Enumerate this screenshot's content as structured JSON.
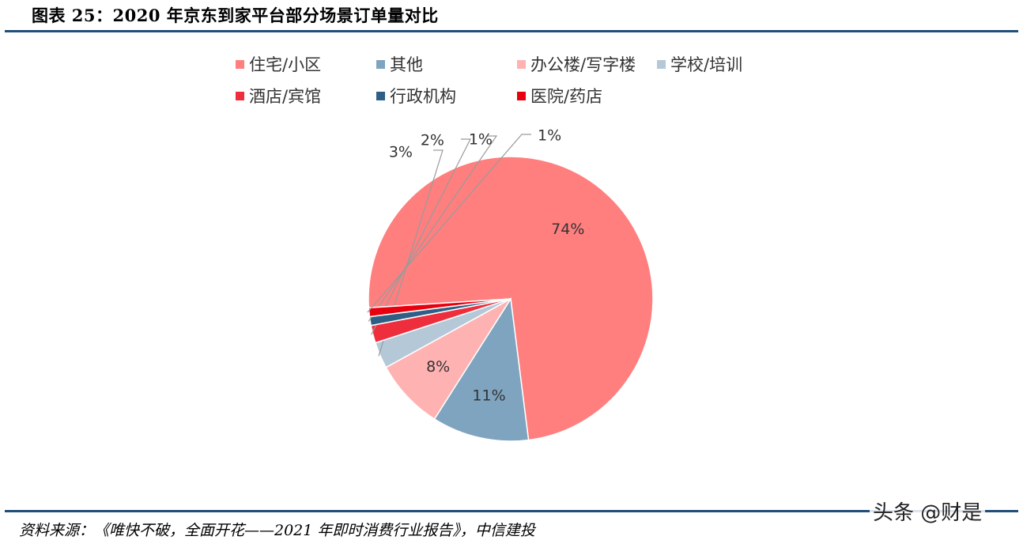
{
  "figure": {
    "title": "图表 25：2020 年京东到家平台部分场景订单量对比",
    "source": "资料来源：《唯快不破，全面开花——2021 年即时消费行业报告》，中信建投",
    "watermark": "头条 @财是"
  },
  "chart_data": {
    "type": "pie",
    "title": "",
    "legend_position": "top",
    "slices": [
      {
        "name": "住宅/小区",
        "value": 74,
        "label": "74%",
        "color": "#ff7f7f"
      },
      {
        "name": "其他",
        "value": 11,
        "label": "11%",
        "color": "#7fa4bf"
      },
      {
        "name": "办公楼/写字楼",
        "value": 8,
        "label": "8%",
        "color": "#ffb2b2"
      },
      {
        "name": "学校/培训",
        "value": 3,
        "label": "3%",
        "color": "#b4c8d8"
      },
      {
        "name": "酒店/宾馆",
        "value": 2,
        "label": "2%",
        "color": "#ee2e3c"
      },
      {
        "name": "行政机构",
        "value": 1,
        "label": "1%",
        "color": "#2e5f85"
      },
      {
        "name": "医院/药店",
        "value": 1,
        "label": "1%",
        "color": "#e8000f"
      }
    ]
  }
}
